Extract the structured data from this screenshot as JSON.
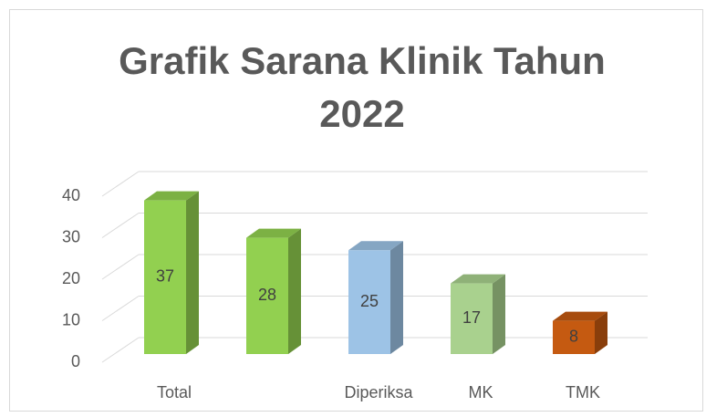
{
  "chart_data": {
    "type": "bar3d",
    "title": "Grafik Sarana Klinik Tahun 2022",
    "categories": [
      "Total",
      null,
      "Diperiksa",
      "MK",
      "TMK"
    ],
    "values": [
      37,
      28,
      25,
      17,
      8
    ],
    "colors": [
      "#92d050",
      "#92d050",
      "#9dc3e6",
      "#a9d18e",
      "#c55a11"
    ],
    "ylim": [
      0,
      40
    ],
    "yticks": [
      0,
      10,
      20,
      30,
      40
    ],
    "grid": true
  }
}
